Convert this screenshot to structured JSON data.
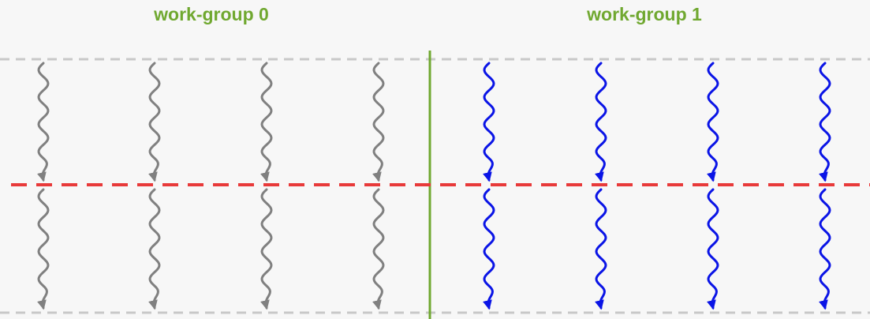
{
  "groups": [
    {
      "label": "work-group 0",
      "thread_color": "#808080",
      "thread_count": 4
    },
    {
      "label": "work-group 1",
      "thread_color": "#0a14e6",
      "thread_count": 4
    }
  ],
  "colors": {
    "background": "#f7f7f7",
    "group_label": "#70a830",
    "group_divider": "#70a830",
    "barrier": "#e83a3a",
    "boundary_lines": "#c8c8c8"
  },
  "icons": {
    "thread": "wavy-arrow-icon",
    "barrier": "dashed-line-icon"
  }
}
